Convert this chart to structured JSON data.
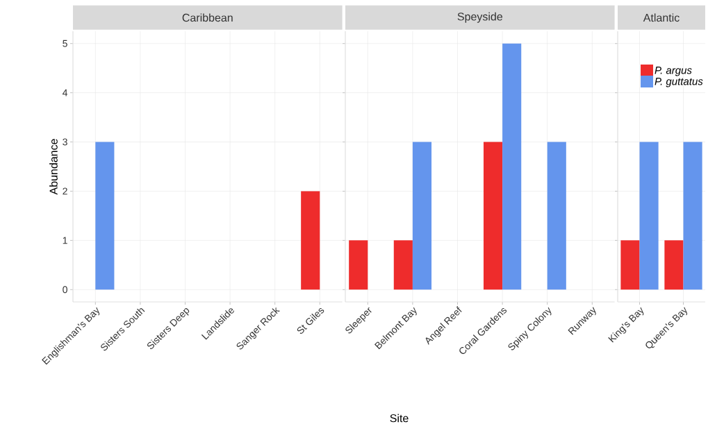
{
  "chart_data": [
    {
      "type": "bar",
      "title": "Caribbean",
      "ylabel": "Abundance",
      "categories": [
        "Englishman's Bay",
        "Sisters South",
        "Sisters Deep",
        "Landslide",
        "Sanger Rock",
        "St Giles"
      ],
      "series": [
        {
          "color": "#ee2c2c",
          "values": [
            0,
            0,
            0,
            0,
            0,
            2
          ]
        },
        {
          "color": "#6495ed",
          "values": [
            3,
            0,
            0,
            0,
            0,
            0
          ]
        }
      ],
      "ylim": [
        -0.25,
        5.25
      ],
      "yticks": [
        0,
        1,
        2,
        3,
        4,
        5
      ],
      "grid": true
    },
    {
      "type": "bar",
      "title": "Speyside",
      "xlabel": "Site",
      "categories": [
        "Sleeper",
        "Belmont Bay",
        "Angel Reef",
        "Coral Gardens",
        "Spiny Colony",
        "Runway"
      ],
      "series": [
        {
          "color": "#ee2c2c",
          "values": [
            1,
            1,
            0,
            3,
            0,
            0
          ]
        },
        {
          "color": "#6495ed",
          "values": [
            0,
            3,
            0,
            5,
            3,
            0
          ]
        }
      ],
      "ylim": [
        -0.25,
        5.25
      ],
      "yticks": [
        0,
        1,
        2,
        3,
        4,
        5
      ],
      "grid": true,
      "tick_labels": "x"
    },
    {
      "type": "bar",
      "title": "Atlantic",
      "categories": [
        "King's Bay",
        "Queen's Bay"
      ],
      "series": [
        {
          "name": "P. argus",
          "color": "#ee2c2c",
          "values": [
            1,
            1
          ]
        },
        {
          "name": "P. guttatus",
          "color": "#6495ed",
          "values": [
            3,
            3
          ]
        }
      ],
      "ylim": [
        -0.25,
        5.25
      ],
      "yticks": [
        0,
        1,
        2,
        3,
        4,
        5
      ],
      "grid": true,
      "tick_labels": "x",
      "legend": "top right"
    }
  ]
}
